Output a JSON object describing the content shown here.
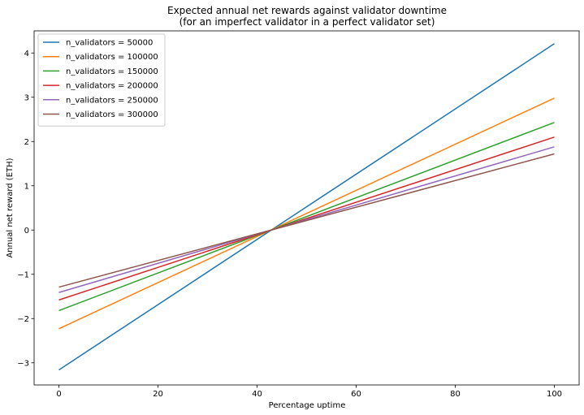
{
  "chart_data": {
    "type": "line",
    "title": "Expected annual net rewards against validator downtime",
    "subtitle": "(for an imperfect validator in a perfect validator set)",
    "xlabel": "Percentage uptime",
    "ylabel": "Annual net reward (ETH)",
    "xlim": [
      -5,
      105
    ],
    "ylim": [
      -3.5,
      4.5
    ],
    "xticks": [
      0,
      20,
      40,
      60,
      80,
      100
    ],
    "yticks": [
      -3,
      -2,
      -1,
      0,
      1,
      2,
      3,
      4
    ],
    "grid": false,
    "legend_position": "top-left",
    "series": [
      {
        "name": "n_validators = 50000",
        "color": "#1f77b4",
        "x": [
          0,
          100
        ],
        "y": [
          -3.16,
          4.21
        ]
      },
      {
        "name": "n_validators = 100000",
        "color": "#ff7f0e",
        "x": [
          0,
          100
        ],
        "y": [
          -2.23,
          2.98
        ]
      },
      {
        "name": "n_validators = 150000",
        "color": "#2ca02c",
        "x": [
          0,
          100
        ],
        "y": [
          -1.82,
          2.43
        ]
      },
      {
        "name": "n_validators = 200000",
        "color": "#d62728",
        "x": [
          0,
          100
        ],
        "y": [
          -1.58,
          2.1
        ]
      },
      {
        "name": "n_validators = 250000",
        "color": "#9467bd",
        "x": [
          0,
          100
        ],
        "y": [
          -1.41,
          1.88
        ]
      },
      {
        "name": "n_validators = 300000",
        "color": "#8c564b",
        "x": [
          0,
          100
        ],
        "y": [
          -1.29,
          1.72
        ]
      }
    ]
  }
}
